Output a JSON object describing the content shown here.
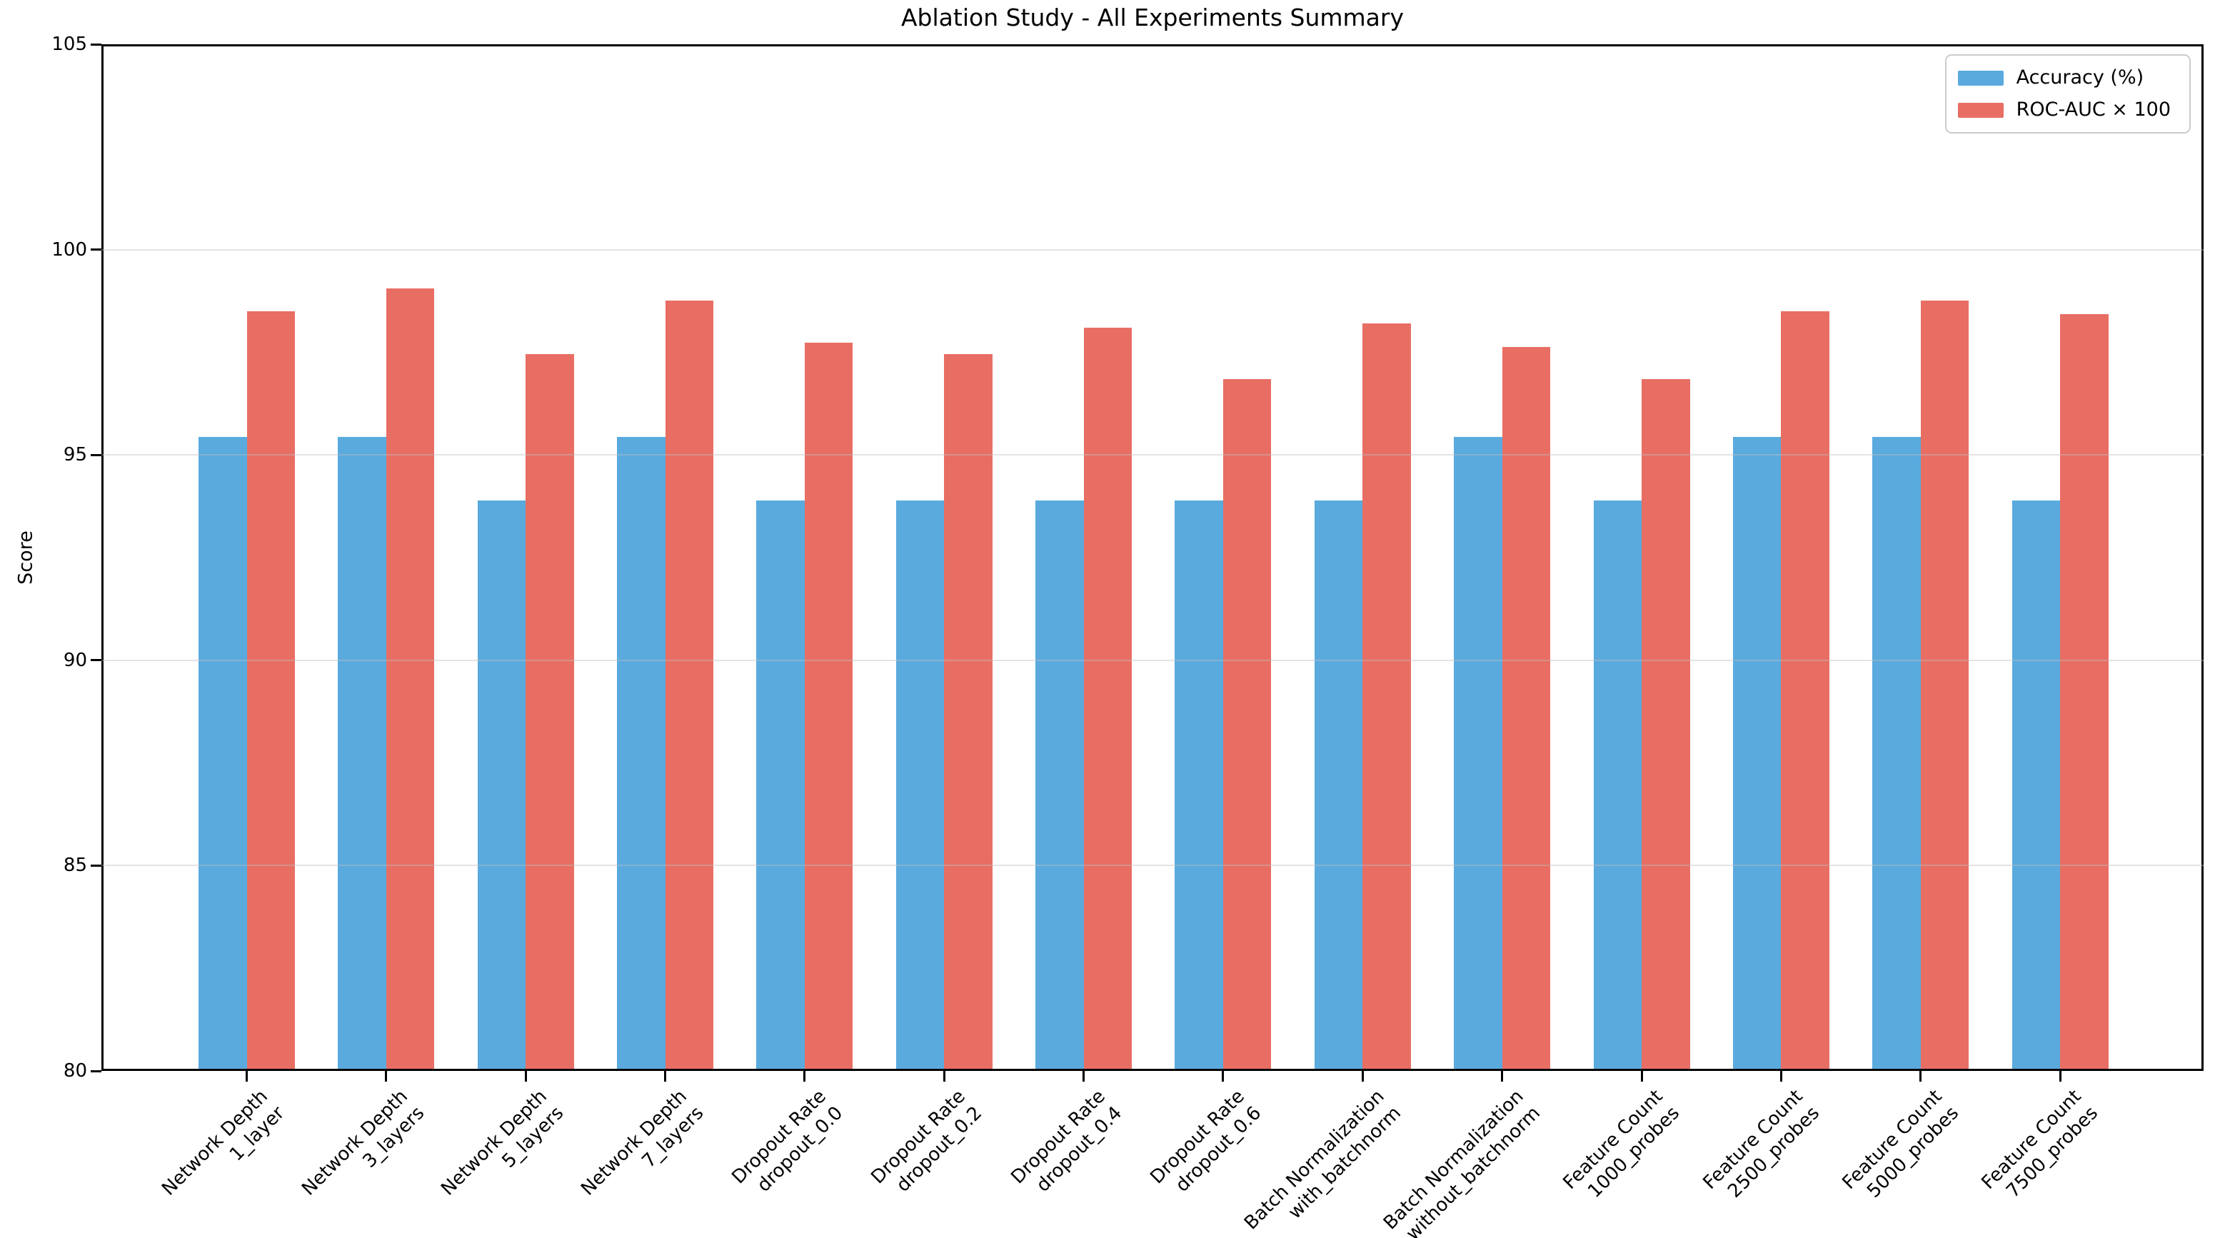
{
  "chart_data": {
    "type": "bar",
    "title": "Ablation Study - All Experiments Summary",
    "xlabel": "",
    "ylabel": "Score",
    "ylim": [
      80,
      105
    ],
    "yticks": [
      80,
      85,
      90,
      95,
      100,
      105
    ],
    "grid": "horizontal only, light gray, drawn over bars",
    "legend_position": "upper right",
    "xtick_rotation_deg": 45,
    "bar_width_fraction": 0.35,
    "categories": [
      [
        "Network Depth",
        "1_layer"
      ],
      [
        "Network Depth",
        "3_layers"
      ],
      [
        "Network Depth",
        "5_layers"
      ],
      [
        "Network Depth",
        "7_layers"
      ],
      [
        "Dropout Rate",
        "dropout_0.0"
      ],
      [
        "Dropout Rate",
        "dropout_0.2"
      ],
      [
        "Dropout Rate",
        "dropout_0.4"
      ],
      [
        "Dropout Rate",
        "dropout_0.6"
      ],
      [
        "Batch Normalization",
        "with_batchnorm"
      ],
      [
        "Batch Normalization",
        "without_batchnorm"
      ],
      [
        "Feature Count",
        "1000_probes"
      ],
      [
        "Feature Count",
        "2500_probes"
      ],
      [
        "Feature Count",
        "5000_probes"
      ],
      [
        "Feature Count",
        "7500_probes"
      ]
    ],
    "series": [
      {
        "name": "Accuracy (%)",
        "color": "#5AAADE",
        "values": [
          95.38,
          95.38,
          93.84,
          95.38,
          93.84,
          93.84,
          93.84,
          93.84,
          93.84,
          95.38,
          93.84,
          95.38,
          95.38,
          93.84
        ]
      },
      {
        "name": "ROC-AUC × 100",
        "color": "#E86E64",
        "values": [
          98.45,
          99.0,
          97.4,
          98.7,
          97.68,
          97.4,
          98.05,
          96.8,
          98.15,
          97.58,
          96.8,
          98.45,
          98.7,
          98.37
        ]
      }
    ]
  }
}
